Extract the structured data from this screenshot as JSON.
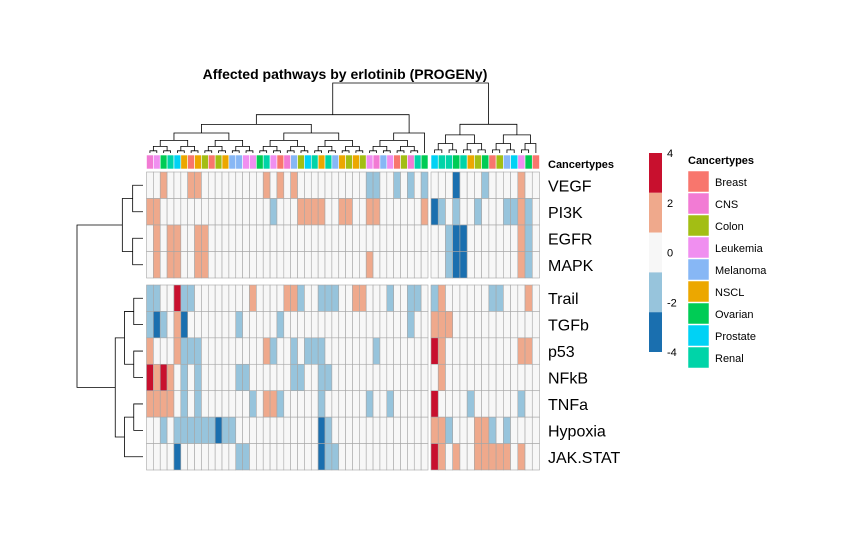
{
  "chart_data": {
    "type": "heatmap",
    "title": "Affected pathways by erlotinib (PROGENy)",
    "rows": [
      "VEGF",
      "PI3K",
      "EGFR",
      "MAPK",
      "Trail",
      "TGFb",
      "p53",
      "NFkB",
      "TNFa",
      "Hypoxia",
      "JAK.STAT"
    ],
    "row_groups": [
      [
        0,
        1,
        2,
        3
      ],
      [
        4,
        5,
        6,
        7,
        8,
        9,
        10
      ]
    ],
    "column_groups": [
      {
        "cancertypes": [
          "CNS",
          "Leukemia",
          "Ovarian",
          "Renal",
          "Prostate",
          "NSCL",
          "Breast",
          "NSCL",
          "Colon",
          "Breast",
          "Colon",
          "NSCL",
          "Melanoma",
          "Melanoma",
          "Leukemia",
          "Leukemia",
          "Ovarian",
          "Renal",
          "Leukemia",
          "Breast",
          "CNS",
          "Melanoma",
          "Colon",
          "Prostate",
          "Renal",
          "NSCL",
          "Renal",
          "Melanoma",
          "NSCL",
          "Colon",
          "NSCL",
          "Colon",
          "Leukemia",
          "CNS",
          "Melanoma",
          "Leukemia",
          "Breast",
          "Colon",
          "CNS",
          "Renal",
          "Ovarian"
        ],
        "values": [
          [
            0,
            0,
            2,
            0,
            0,
            0,
            2,
            2,
            0,
            0,
            0,
            0,
            0,
            0,
            0,
            0,
            0,
            2,
            0,
            2,
            0,
            2,
            0,
            0,
            0,
            0,
            0,
            0,
            0,
            0,
            0,
            0,
            -2,
            -2,
            0,
            0,
            -2,
            0,
            -2,
            0,
            -2
          ],
          [
            2,
            2,
            0,
            0,
            0,
            0,
            0,
            0,
            0,
            0,
            0,
            0,
            0,
            0,
            0,
            0,
            0,
            0,
            -2,
            0,
            0,
            0,
            2,
            2,
            2,
            2,
            0,
            0,
            2,
            2,
            0,
            0,
            2,
            2,
            0,
            0,
            0,
            0,
            0,
            0,
            2
          ],
          [
            0,
            2,
            0,
            2,
            2,
            0,
            0,
            2,
            2,
            0,
            0,
            0,
            0,
            0,
            0,
            0,
            0,
            0,
            0,
            0,
            0,
            0,
            0,
            0,
            0,
            0,
            0,
            0,
            0,
            0,
            0,
            0,
            0,
            0,
            0,
            0,
            0,
            0,
            0,
            0,
            0
          ],
          [
            0,
            2,
            0,
            2,
            2,
            0,
            0,
            2,
            2,
            0,
            0,
            0,
            0,
            0,
            0,
            0,
            0,
            0,
            0,
            0,
            0,
            0,
            0,
            0,
            0,
            0,
            0,
            0,
            0,
            0,
            0,
            0,
            2,
            0,
            0,
            0,
            0,
            0,
            0,
            0,
            0
          ],
          [
            -2,
            -2,
            0,
            0,
            4,
            -2,
            -2,
            0,
            0,
            0,
            0,
            0,
            0,
            0,
            0,
            2,
            0,
            0,
            0,
            0,
            2,
            2,
            -2,
            0,
            0,
            -2,
            -2,
            -2,
            0,
            0,
            2,
            2,
            0,
            0,
            0,
            -2,
            0,
            0,
            -2,
            -2,
            0
          ],
          [
            -2,
            -4,
            -2,
            0,
            2,
            -4,
            0,
            0,
            0,
            0,
            0,
            0,
            0,
            -2,
            0,
            0,
            0,
            0,
            0,
            -2,
            0,
            0,
            0,
            0,
            0,
            0,
            0,
            0,
            0,
            0,
            0,
            0,
            0,
            0,
            0,
            0,
            0,
            0,
            -2,
            0,
            0
          ],
          [
            2,
            0,
            0,
            0,
            2,
            -2,
            -2,
            -2,
            0,
            0,
            0,
            0,
            0,
            0,
            0,
            0,
            0,
            2,
            -2,
            0,
            0,
            -2,
            0,
            -2,
            -2,
            -2,
            0,
            0,
            0,
            0,
            0,
            0,
            0,
            -2,
            0,
            0,
            0,
            0,
            0,
            0,
            0
          ],
          [
            4,
            2,
            4,
            2,
            0,
            -2,
            0,
            -2,
            0,
            0,
            0,
            0,
            0,
            -2,
            -2,
            0,
            0,
            0,
            0,
            0,
            0,
            -2,
            -2,
            0,
            0,
            -2,
            -2,
            0,
            0,
            0,
            0,
            0,
            0,
            0,
            0,
            0,
            0,
            0,
            0,
            0,
            0
          ],
          [
            2,
            2,
            2,
            2,
            0,
            -2,
            0,
            -2,
            0,
            0,
            0,
            0,
            0,
            0,
            0,
            -2,
            0,
            2,
            2,
            -2,
            0,
            0,
            0,
            0,
            0,
            -2,
            0,
            0,
            0,
            0,
            0,
            0,
            -2,
            0,
            0,
            -2,
            0,
            0,
            0,
            0,
            0
          ],
          [
            0,
            0,
            -2,
            0,
            -2,
            -2,
            -2,
            -2,
            -2,
            -2,
            -4,
            -2,
            -2,
            0,
            0,
            0,
            0,
            0,
            0,
            0,
            0,
            0,
            0,
            0,
            0,
            -4,
            -2,
            0,
            0,
            0,
            0,
            0,
            0,
            0,
            0,
            0,
            0,
            0,
            0,
            0,
            0
          ],
          [
            0,
            0,
            0,
            0,
            -4,
            0,
            0,
            0,
            0,
            0,
            0,
            0,
            0,
            -2,
            -2,
            0,
            0,
            0,
            0,
            0,
            0,
            0,
            0,
            0,
            0,
            -4,
            -2,
            -2,
            0,
            0,
            0,
            0,
            0,
            0,
            0,
            0,
            0,
            0,
            0,
            0,
            0
          ]
        ]
      },
      {
        "cancertypes": [
          "Prostate",
          "Renal",
          "Renal",
          "Ovarian",
          "Renal",
          "NSCL",
          "Colon",
          "Ovarian",
          "Breast",
          "Colon",
          "Melanoma",
          "Prostate",
          "Leukemia",
          "Ovarian",
          "Breast"
        ],
        "values": [
          [
            0,
            0,
            0,
            -4,
            0,
            0,
            0,
            -2,
            0,
            0,
            0,
            0,
            2,
            0,
            0
          ],
          [
            -4,
            -2,
            0,
            -2,
            0,
            0,
            -2,
            0,
            0,
            0,
            -2,
            -2,
            2,
            -2,
            0
          ],
          [
            0,
            0,
            -2,
            -4,
            -4,
            0,
            0,
            0,
            0,
            0,
            0,
            0,
            2,
            -2,
            0
          ],
          [
            0,
            0,
            -2,
            -4,
            -4,
            0,
            0,
            0,
            0,
            0,
            0,
            0,
            2,
            -2,
            0
          ],
          [
            -2,
            2,
            0,
            0,
            0,
            0,
            0,
            0,
            -2,
            -2,
            0,
            0,
            0,
            2,
            0
          ],
          [
            2,
            2,
            2,
            0,
            0,
            0,
            0,
            0,
            0,
            0,
            0,
            0,
            0,
            0,
            0
          ],
          [
            4,
            2,
            0,
            0,
            0,
            0,
            0,
            0,
            0,
            0,
            0,
            0,
            2,
            2,
            0
          ],
          [
            0,
            2,
            0,
            0,
            0,
            0,
            0,
            0,
            0,
            0,
            0,
            0,
            0,
            0,
            0
          ],
          [
            4,
            0,
            0,
            0,
            0,
            -2,
            0,
            0,
            0,
            0,
            0,
            0,
            -2,
            0,
            0
          ],
          [
            2,
            2,
            -2,
            0,
            0,
            0,
            2,
            2,
            -2,
            0,
            -2,
            0,
            0,
            0,
            0
          ],
          [
            4,
            2,
            0,
            2,
            0,
            0,
            2,
            2,
            2,
            2,
            2,
            0,
            2,
            0,
            0
          ]
        ]
      }
    ],
    "annotation_label": "Cancertypes",
    "value_legend": {
      "ticks": [
        4,
        2,
        0,
        -2,
        -4
      ]
    },
    "color_scale": {
      "4": "#c8102e",
      "2": "#efa98c",
      "0": "#f7f7f7",
      "-2": "#97c4dc",
      "-4": "#1a6faf"
    },
    "annotation_legend": {
      "title": "Cancertypes",
      "items": [
        {
          "label": "Breast",
          "color": "#f8766d"
        },
        {
          "label": "CNS",
          "color": "#f27bd4"
        },
        {
          "label": "Colon",
          "color": "#a3be14"
        },
        {
          "label": "Leukemia",
          "color": "#f08ff0"
        },
        {
          "label": "Melanoma",
          "color": "#87b7f5"
        },
        {
          "label": "NSCL",
          "color": "#eca700"
        },
        {
          "label": "Ovarian",
          "color": "#00cc55"
        },
        {
          "label": "Prostate",
          "color": "#00d2f5"
        },
        {
          "label": "Renal",
          "color": "#00d4a8"
        }
      ]
    }
  }
}
